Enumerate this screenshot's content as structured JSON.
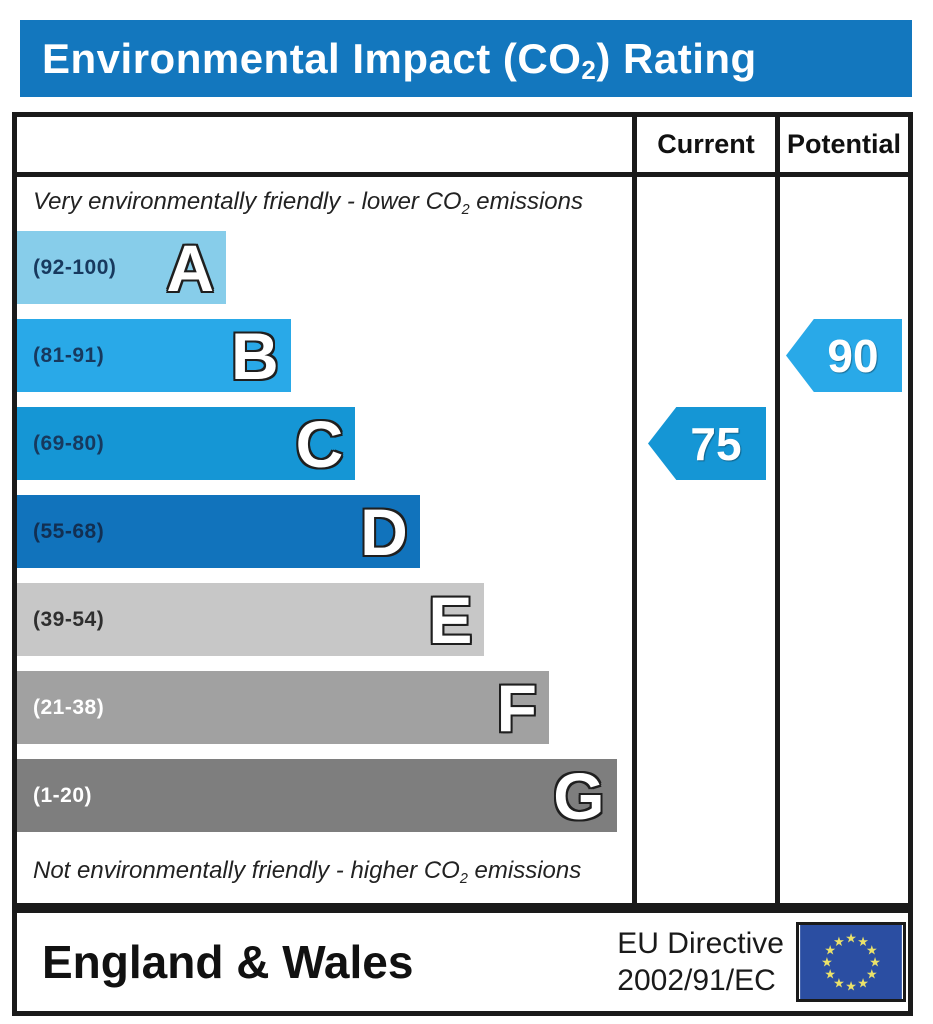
{
  "title": {
    "prefix": "Environmental Impact (CO",
    "subscript": "2",
    "suffix": ") Rating",
    "bar_color": "#1377BE"
  },
  "table": {
    "current_header": "Current",
    "potential_header": "Potential"
  },
  "notes": {
    "top": {
      "prefix": "Very environmentally friendly - lower CO",
      "subscript": "2",
      "suffix": " emissions"
    },
    "bottom": {
      "prefix": "Not environmentally friendly - higher CO",
      "subscript": "2",
      "suffix": " emissions"
    }
  },
  "chart_data": {
    "type": "bar",
    "title": "Environmental Impact (CO2) Rating",
    "orientation": "horizontal",
    "bands": [
      {
        "letter": "A",
        "range": "(92-100)",
        "range_min": 92,
        "range_max": 100,
        "color": "#87CDEA",
        "range_color": "#17395E",
        "width_pct": 34
      },
      {
        "letter": "B",
        "range": "(81-91)",
        "range_min": 81,
        "range_max": 91,
        "color": "#29A9E8",
        "range_color": "#17395E",
        "width_pct": 44.5
      },
      {
        "letter": "C",
        "range": "(69-80)",
        "range_min": 69,
        "range_max": 80,
        "color": "#1596D5",
        "range_color": "#17395E",
        "width_pct": 55
      },
      {
        "letter": "D",
        "range": "(55-68)",
        "range_min": 55,
        "range_max": 68,
        "color": "#1173BC",
        "range_color": "#122F52",
        "width_pct": 65.5
      },
      {
        "letter": "E",
        "range": "(39-54)",
        "range_min": 39,
        "range_max": 54,
        "color": "#C7C7C7",
        "range_color": "#2E2E2E",
        "width_pct": 76
      },
      {
        "letter": "F",
        "range": "(21-38)",
        "range_min": 21,
        "range_max": 38,
        "color": "#A1A1A1",
        "range_color": "#FFFFFF",
        "width_pct": 86.5
      },
      {
        "letter": "G",
        "range": "(1-20)",
        "range_min": 1,
        "range_max": 20,
        "color": "#7E7E7E",
        "range_color": "#FFFFFF",
        "width_pct": 97.5
      }
    ],
    "ratings": {
      "current": {
        "value": 75,
        "band": "C",
        "band_index": 2,
        "color": "#1596D5"
      },
      "potential": {
        "value": 90,
        "band": "B",
        "band_index": 1,
        "color": "#29A9E8"
      }
    }
  },
  "footer": {
    "region": "England & Wales",
    "directive_line1": "EU Directive",
    "directive_line2": "2002/91/EC",
    "eu_flag": {
      "background": "#2B4EA2",
      "star_color": "#EBE26A"
    }
  }
}
